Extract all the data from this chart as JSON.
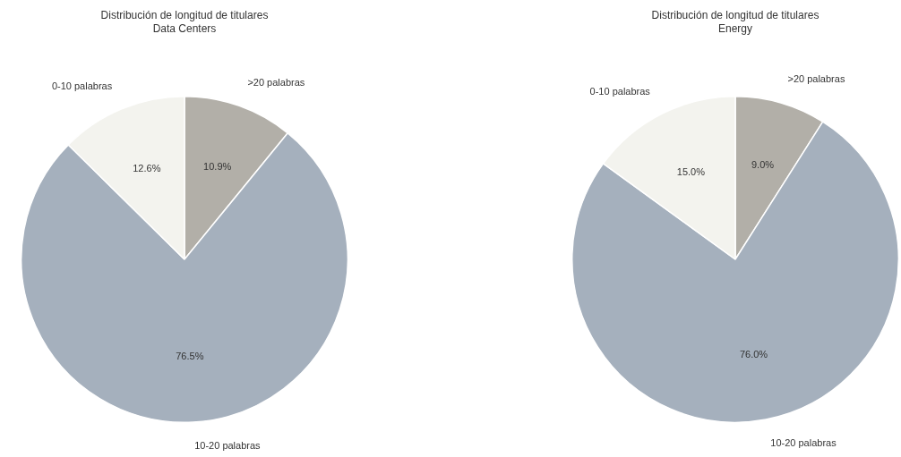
{
  "chart_data": [
    {
      "type": "pie",
      "title": "Distribución de longitud de titulares",
      "subtitle": "Data Centers",
      "categories": [
        "0-10 palabras",
        "10-20 palabras",
        ">20 palabras"
      ],
      "values": [
        12.6,
        76.5,
        10.9
      ],
      "colors": [
        "#f3f3ee",
        "#a5b0bd",
        "#b2afa8"
      ],
      "value_labels": [
        "12.6%",
        "76.5%",
        "10.9%"
      ]
    },
    {
      "type": "pie",
      "title": "Distribución de longitud de titulares",
      "subtitle": "Energy",
      "categories": [
        "0-10 palabras",
        "10-20 palabras",
        ">20 palabras"
      ],
      "values": [
        15.0,
        76.0,
        9.0
      ],
      "colors": [
        "#f3f3ee",
        "#a5b0bd",
        "#b2afa8"
      ],
      "value_labels": [
        "15.0%",
        "76.0%",
        "9.0%"
      ]
    }
  ]
}
